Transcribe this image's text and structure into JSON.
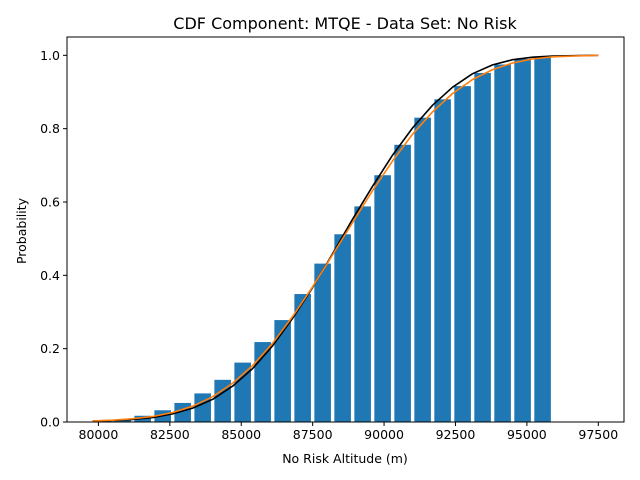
{
  "chart_data": {
    "type": "bar",
    "title": "CDF Component: MTQE - Data Set: No Risk",
    "xlabel": "No Risk Altitude (m)",
    "ylabel": "Probability",
    "xlim": [
      78900,
      98400
    ],
    "ylim": [
      0,
      1.05
    ],
    "grid": false,
    "x_ticks": [
      80000,
      82500,
      85000,
      87500,
      90000,
      92500,
      95000,
      97500
    ],
    "x_tick_labels": [
      "80000",
      "82500",
      "85000",
      "87500",
      "90000",
      "92500",
      "95000",
      "97500"
    ],
    "y_ticks": [
      0.0,
      0.2,
      0.4,
      0.6,
      0.8,
      1.0
    ],
    "y_tick_labels": [
      "0.0",
      "0.2",
      "0.4",
      "0.6",
      "0.8",
      "1.0"
    ],
    "bar_width": 580,
    "bar_color": "#1f77b4",
    "bars": {
      "x": [
        80150,
        80850,
        81550,
        82250,
        82950,
        83650,
        84350,
        85050,
        85750,
        86450,
        87150,
        87850,
        88550,
        89250,
        89950,
        90650,
        91350,
        92050,
        92750,
        93450,
        94150,
        94850,
        95550
      ],
      "values": [
        0.004,
        0.007,
        0.017,
        0.032,
        0.052,
        0.078,
        0.115,
        0.162,
        0.218,
        0.278,
        0.349,
        0.432,
        0.512,
        0.588,
        0.673,
        0.756,
        0.83,
        0.88,
        0.916,
        0.952,
        0.975,
        0.99,
        0.997
      ]
    },
    "series": [
      {
        "color": "#000000",
        "x": [
          79800,
          80500,
          81200,
          81900,
          82600,
          83300,
          84000,
          84700,
          85400,
          86100,
          86800,
          87500,
          88200,
          88900,
          89600,
          90300,
          91000,
          91700,
          92400,
          93100,
          93800,
          94500,
          95200,
          95900,
          96600,
          97500
        ],
        "values": [
          0.003,
          0.004,
          0.007,
          0.012,
          0.022,
          0.038,
          0.062,
          0.098,
          0.146,
          0.208,
          0.283,
          0.367,
          0.459,
          0.553,
          0.643,
          0.728,
          0.802,
          0.864,
          0.913,
          0.95,
          0.974,
          0.988,
          0.995,
          0.998,
          0.999,
          1.0
        ]
      },
      {
        "color": "#ff7f0e",
        "x": [
          79800,
          80500,
          81200,
          81900,
          82600,
          83300,
          84000,
          84700,
          85400,
          86100,
          86800,
          87500,
          88200,
          88900,
          89600,
          90300,
          91000,
          91700,
          92400,
          93100,
          93800,
          94500,
          95200,
          95900,
          96600,
          97500
        ],
        "values": [
          0.003,
          0.005,
          0.009,
          0.015,
          0.026,
          0.043,
          0.069,
          0.106,
          0.154,
          0.215,
          0.288,
          0.369,
          0.456,
          0.544,
          0.631,
          0.712,
          0.785,
          0.846,
          0.896,
          0.934,
          0.961,
          0.979,
          0.99,
          0.996,
          0.998,
          1.0
        ]
      }
    ]
  }
}
